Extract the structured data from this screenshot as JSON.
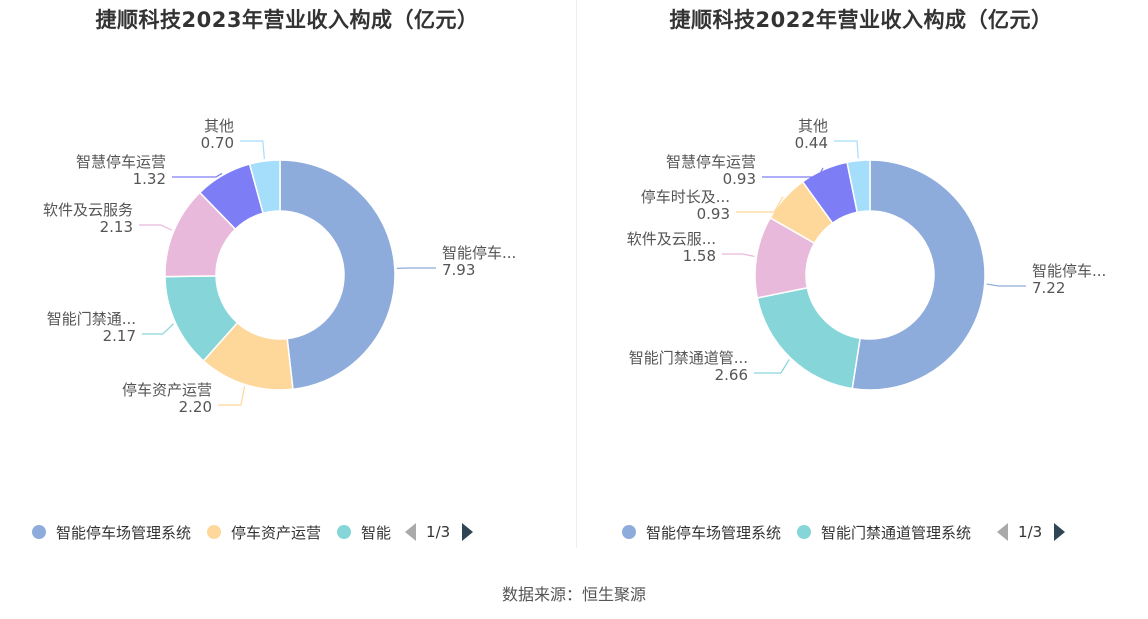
{
  "source": "数据来源：恒生聚源",
  "chart_data": [
    {
      "type": "pie",
      "title": "捷顺科技2023年营业收入构成（亿元）",
      "slices": [
        {
          "name": "智能停车场管理系统",
          "label": "智能停车...",
          "value": 7.93,
          "display": "7.93",
          "color": "#8eacdb"
        },
        {
          "name": "停车资产运营",
          "label": "停车资产运营",
          "value": 2.2,
          "display": "2.20",
          "color": "#fdd89a"
        },
        {
          "name": "智能门禁通道管理系统",
          "label": "智能门禁通...",
          "value": 2.17,
          "display": "2.17",
          "color": "#86d5d9"
        },
        {
          "name": "软件及云服务",
          "label": "软件及云服务",
          "value": 2.13,
          "display": "2.13",
          "color": "#e8b9da"
        },
        {
          "name": "智慧停车运营",
          "label": "智慧停车运营",
          "value": 1.32,
          "display": "1.32",
          "color": "#7d7ef5"
        },
        {
          "name": "其他",
          "label": "其他",
          "value": 0.7,
          "display": "0.70",
          "color": "#a5defa"
        }
      ],
      "legend": {
        "items": [
          "智能停车场管理系统",
          "停车资产运营",
          "智能"
        ],
        "colors": [
          "#8eacdb",
          "#fdd89a",
          "#86d5d9"
        ],
        "page": "1/3"
      }
    },
    {
      "type": "pie",
      "title": "捷顺科技2022年营业收入构成（亿元）",
      "slices": [
        {
          "name": "智能停车场管理系统",
          "label": "智能停车...",
          "value": 7.22,
          "display": "7.22",
          "color": "#8eacdb"
        },
        {
          "name": "智能门禁通道管理系统",
          "label": "智能门禁通道管...",
          "value": 2.66,
          "display": "2.66",
          "color": "#86d5d9"
        },
        {
          "name": "软件及云服务",
          "label": "软件及云服...",
          "value": 1.58,
          "display": "1.58",
          "color": "#e8b9da"
        },
        {
          "name": "停车时长及",
          "label": "停车时长及...",
          "value": 0.93,
          "display": "0.93",
          "color": "#fdd89a"
        },
        {
          "name": "智慧停车运营",
          "label": "智慧停车运营",
          "value": 0.93,
          "display": "0.93",
          "color": "#7d7ef5"
        },
        {
          "name": "其他",
          "label": "其他",
          "value": 0.44,
          "display": "0.44",
          "color": "#a5defa"
        }
      ],
      "legend": {
        "items": [
          "智能停车场管理系统",
          "智能门禁通道管理系统"
        ],
        "colors": [
          "#8eacdb",
          "#86d5d9"
        ],
        "page": "1/3"
      }
    }
  ]
}
